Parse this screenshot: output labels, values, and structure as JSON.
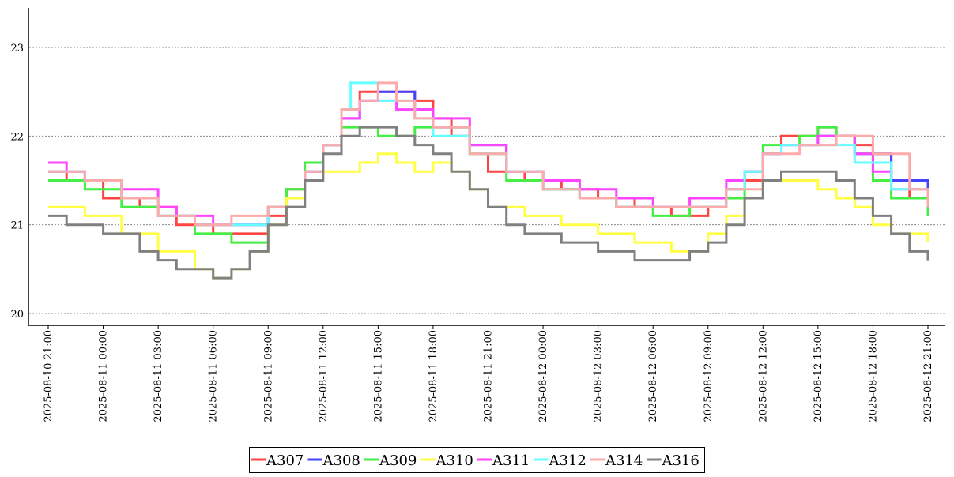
{
  "chart_data": {
    "type": "line",
    "title": "",
    "xlabel": "",
    "ylabel": "",
    "ylim": [
      19.9,
      23.45
    ],
    "xlim": [
      "2025-08-10 21:00",
      "2025-08-12 21:10"
    ],
    "grid": "horizontal dotted",
    "legend_position": "bottom-center",
    "y_ticks": [
      "20",
      "21",
      "22",
      "23"
    ],
    "x_ticks": [
      "2025-08-10 21:00",
      "2025-08-11 00:00",
      "2025-08-11 03:00",
      "2025-08-11 06:00",
      "2025-08-11 09:00",
      "2025-08-11 12:00",
      "2025-08-11 15:00",
      "2025-08-11 18:00",
      "2025-08-11 21:00",
      "2025-08-12 00:00",
      "2025-08-12 03:00",
      "2025-08-12 06:00",
      "2025-08-12 09:00",
      "2025-08-12 12:00",
      "2025-08-12 15:00",
      "2025-08-12 18:00",
      "2025-08-12 21:00"
    ],
    "series": [
      {
        "name": "A307",
        "color": "#ff4444",
        "x": [
          "2025-08-10 21:00",
          "2025-08-10 22:00",
          "2025-08-11 00:00",
          "2025-08-11 02:00",
          "2025-08-11 04:00",
          "2025-08-11 06:00",
          "2025-08-11 07:00",
          "2025-08-11 09:00",
          "2025-08-11 10:00",
          "2025-08-11 11:00",
          "2025-08-11 12:00",
          "2025-08-11 13:00",
          "2025-08-11 14:00",
          "2025-08-11 15:00",
          "2025-08-11 17:00",
          "2025-08-11 18:00",
          "2025-08-11 19:00",
          "2025-08-11 20:00",
          "2025-08-11 21:00",
          "2025-08-11 23:00",
          "2025-08-12 01:00",
          "2025-08-12 03:00",
          "2025-08-12 05:00",
          "2025-08-12 07:00",
          "2025-08-12 09:00",
          "2025-08-12 10:00",
          "2025-08-12 11:00",
          "2025-08-12 12:00",
          "2025-08-12 13:00",
          "2025-08-12 14:00",
          "2025-08-12 15:00",
          "2025-08-12 16:00",
          "2025-08-12 17:00",
          "2025-08-12 18:00",
          "2025-08-12 19:00",
          "2025-08-12 20:00",
          "2025-08-12 21:00"
        ],
        "y": [
          21.6,
          21.5,
          21.3,
          21.2,
          21.0,
          20.9,
          20.9,
          21.1,
          21.4,
          21.6,
          21.9,
          22.3,
          22.5,
          22.5,
          22.4,
          22.2,
          22.0,
          21.8,
          21.6,
          21.5,
          21.4,
          21.3,
          21.2,
          21.1,
          21.2,
          21.4,
          21.5,
          21.8,
          22.0,
          22.0,
          22.1,
          22.0,
          21.9,
          21.8,
          21.5,
          21.3,
          21.2
        ]
      },
      {
        "name": "A308",
        "color": "#4444ff",
        "x": [
          "2025-08-10 21:00",
          "2025-08-10 23:00",
          "2025-08-11 01:00",
          "2025-08-11 03:00",
          "2025-08-11 05:00",
          "2025-08-11 07:00",
          "2025-08-11 09:00",
          "2025-08-11 11:00",
          "2025-08-11 12:00",
          "2025-08-11 13:00",
          "2025-08-11 14:00",
          "2025-08-11 15:00",
          "2025-08-11 17:00",
          "2025-08-11 18:00",
          "2025-08-11 20:00",
          "2025-08-11 22:00",
          "2025-08-12 00:00",
          "2025-08-12 02:00",
          "2025-08-12 04:00",
          "2025-08-12 06:00",
          "2025-08-12 08:00",
          "2025-08-12 10:00",
          "2025-08-12 11:00",
          "2025-08-12 12:00",
          "2025-08-12 13:00",
          "2025-08-12 15:00",
          "2025-08-12 16:00",
          "2025-08-12 17:00",
          "2025-08-12 19:00",
          "2025-08-12 21:00"
        ],
        "y": [
          21.6,
          21.5,
          21.3,
          21.1,
          21.0,
          21.0,
          21.2,
          21.6,
          21.9,
          22.2,
          22.4,
          22.5,
          22.3,
          22.1,
          21.9,
          21.6,
          21.4,
          21.3,
          21.2,
          21.2,
          21.2,
          21.4,
          21.6,
          21.8,
          21.9,
          22.0,
          22.0,
          21.8,
          21.5,
          21.2
        ]
      },
      {
        "name": "A309",
        "color": "#44ee44",
        "x": [
          "2025-08-10 21:00",
          "2025-08-10 23:00",
          "2025-08-11 01:00",
          "2025-08-11 03:00",
          "2025-08-11 05:00",
          "2025-08-11 07:00",
          "2025-08-11 09:00",
          "2025-08-11 10:00",
          "2025-08-11 11:00",
          "2025-08-11 12:00",
          "2025-08-11 13:00",
          "2025-08-11 15:00",
          "2025-08-11 17:00",
          "2025-08-11 18:00",
          "2025-08-11 20:00",
          "2025-08-11 22:00",
          "2025-08-12 00:00",
          "2025-08-12 02:00",
          "2025-08-12 04:00",
          "2025-08-12 06:00",
          "2025-08-12 08:00",
          "2025-08-12 10:00",
          "2025-08-12 11:00",
          "2025-08-12 12:00",
          "2025-08-12 13:00",
          "2025-08-12 14:00",
          "2025-08-12 15:00",
          "2025-08-12 16:00",
          "2025-08-12 17:00",
          "2025-08-12 18:00",
          "2025-08-12 19:00",
          "2025-08-12 21:00"
        ],
        "y": [
          21.5,
          21.4,
          21.2,
          21.1,
          20.9,
          20.8,
          21.2,
          21.4,
          21.7,
          21.9,
          22.1,
          22.0,
          22.1,
          22.1,
          21.8,
          21.5,
          21.4,
          21.3,
          21.2,
          21.1,
          21.2,
          21.3,
          21.6,
          21.9,
          21.9,
          22.0,
          22.1,
          22.0,
          21.8,
          21.5,
          21.3,
          21.1
        ]
      },
      {
        "name": "A310",
        "color": "#ffff44",
        "x": [
          "2025-08-10 21:00",
          "2025-08-10 23:00",
          "2025-08-11 01:00",
          "2025-08-11 03:00",
          "2025-08-11 05:00",
          "2025-08-11 06:00",
          "2025-08-11 07:00",
          "2025-08-11 08:00",
          "2025-08-11 09:00",
          "2025-08-11 10:00",
          "2025-08-11 11:00",
          "2025-08-11 12:00",
          "2025-08-11 13:00",
          "2025-08-11 14:00",
          "2025-08-11 15:00",
          "2025-08-11 16:00",
          "2025-08-11 17:00",
          "2025-08-11 18:00",
          "2025-08-11 19:00",
          "2025-08-11 20:00",
          "2025-08-11 21:00",
          "2025-08-11 23:00",
          "2025-08-12 01:00",
          "2025-08-12 03:00",
          "2025-08-12 05:00",
          "2025-08-12 07:00",
          "2025-08-12 08:00",
          "2025-08-12 09:00",
          "2025-08-12 10:00",
          "2025-08-12 11:00",
          "2025-08-12 12:00",
          "2025-08-12 13:00",
          "2025-08-12 14:00",
          "2025-08-12 15:00",
          "2025-08-12 16:00",
          "2025-08-12 17:00",
          "2025-08-12 18:00",
          "2025-08-12 19:00",
          "2025-08-12 20:00",
          "2025-08-12 21:00"
        ],
        "y": [
          21.2,
          21.1,
          20.9,
          20.7,
          20.5,
          20.4,
          20.5,
          20.7,
          21.0,
          21.3,
          21.5,
          21.6,
          21.6,
          21.7,
          21.8,
          21.7,
          21.6,
          21.7,
          21.6,
          21.4,
          21.2,
          21.1,
          21.0,
          20.9,
          20.8,
          20.7,
          20.7,
          20.9,
          21.1,
          21.3,
          21.5,
          21.5,
          21.5,
          21.4,
          21.3,
          21.2,
          21.0,
          20.9,
          20.9,
          20.8
        ]
      },
      {
        "name": "A311",
        "color": "#ff44ff",
        "x": [
          "2025-08-10 21:00",
          "2025-08-10 22:00",
          "2025-08-10 23:00",
          "2025-08-11 01:00",
          "2025-08-11 03:00",
          "2025-08-11 04:00",
          "2025-08-11 06:00",
          "2025-08-11 07:00",
          "2025-08-11 09:00",
          "2025-08-11 11:00",
          "2025-08-11 12:00",
          "2025-08-11 13:00",
          "2025-08-11 14:00",
          "2025-08-11 16:00",
          "2025-08-11 18:00",
          "2025-08-11 20:00",
          "2025-08-11 22:00",
          "2025-08-12 00:00",
          "2025-08-12 02:00",
          "2025-08-12 04:00",
          "2025-08-12 06:00",
          "2025-08-12 08:00",
          "2025-08-12 10:00",
          "2025-08-12 11:00",
          "2025-08-12 12:00",
          "2025-08-12 13:00",
          "2025-08-12 15:00",
          "2025-08-12 16:00",
          "2025-08-12 17:00",
          "2025-08-12 18:00",
          "2025-08-12 19:00",
          "2025-08-12 21:00"
        ],
        "y": [
          21.7,
          21.6,
          21.5,
          21.4,
          21.2,
          21.1,
          21.0,
          21.0,
          21.2,
          21.6,
          21.9,
          22.2,
          22.4,
          22.3,
          22.2,
          21.9,
          21.6,
          21.5,
          21.4,
          21.3,
          21.2,
          21.3,
          21.5,
          21.6,
          21.8,
          21.9,
          22.0,
          22.0,
          21.8,
          21.6,
          21.4,
          21.2
        ]
      },
      {
        "name": "A312",
        "color": "#66ffff",
        "x": [
          "2025-08-10 21:00",
          "2025-08-10 23:00",
          "2025-08-11 01:00",
          "2025-08-11 03:00",
          "2025-08-11 05:00",
          "2025-08-11 07:00",
          "2025-08-11 09:00",
          "2025-08-11 11:00",
          "2025-08-11 12:00",
          "2025-08-11 13:00",
          "2025-08-11 13:30",
          "2025-08-11 15:00",
          "2025-08-11 17:00",
          "2025-08-11 18:00",
          "2025-08-11 20:00",
          "2025-08-11 22:00",
          "2025-08-12 00:00",
          "2025-08-12 02:00",
          "2025-08-12 04:00",
          "2025-08-12 06:00",
          "2025-08-12 08:00",
          "2025-08-12 10:00",
          "2025-08-12 11:00",
          "2025-08-12 12:00",
          "2025-08-12 13:00",
          "2025-08-12 14:00",
          "2025-08-12 15:00",
          "2025-08-12 16:00",
          "2025-08-12 17:00",
          "2025-08-12 19:00",
          "2025-08-12 21:00"
        ],
        "y": [
          21.6,
          21.5,
          21.3,
          21.1,
          21.0,
          21.0,
          21.2,
          21.6,
          21.9,
          22.3,
          22.6,
          22.4,
          22.2,
          22.0,
          21.8,
          21.6,
          21.4,
          21.3,
          21.2,
          21.2,
          21.2,
          21.4,
          21.6,
          21.8,
          21.9,
          21.9,
          21.9,
          21.9,
          21.7,
          21.4,
          21.3
        ]
      },
      {
        "name": "A314",
        "color": "#ffaaaa",
        "x": [
          "2025-08-10 21:00",
          "2025-08-10 23:00",
          "2025-08-11 01:00",
          "2025-08-11 03:00",
          "2025-08-11 05:00",
          "2025-08-11 07:00",
          "2025-08-11 09:00",
          "2025-08-11 11:00",
          "2025-08-11 12:00",
          "2025-08-11 13:00",
          "2025-08-11 14:00",
          "2025-08-11 15:00",
          "2025-08-11 16:00",
          "2025-08-11 17:00",
          "2025-08-11 18:00",
          "2025-08-11 20:00",
          "2025-08-11 22:00",
          "2025-08-12 00:00",
          "2025-08-12 02:00",
          "2025-08-12 04:00",
          "2025-08-12 06:00",
          "2025-08-12 08:00",
          "2025-08-12 10:00",
          "2025-08-12 12:00",
          "2025-08-12 14:00",
          "2025-08-12 16:00",
          "2025-08-12 18:00",
          "2025-08-12 20:00",
          "2025-08-12 21:00"
        ],
        "y": [
          21.6,
          21.5,
          21.3,
          21.1,
          21.0,
          21.1,
          21.2,
          21.6,
          21.9,
          22.3,
          22.4,
          22.6,
          22.4,
          22.2,
          22.1,
          21.8,
          21.6,
          21.4,
          21.3,
          21.2,
          21.2,
          21.2,
          21.4,
          21.8,
          21.9,
          22.0,
          21.8,
          21.4,
          21.2
        ]
      },
      {
        "name": "A316",
        "color": "#808080",
        "x": [
          "2025-08-10 21:00",
          "2025-08-10 22:00",
          "2025-08-11 00:00",
          "2025-08-11 02:00",
          "2025-08-11 03:00",
          "2025-08-11 04:00",
          "2025-08-11 05:00",
          "2025-08-11 06:00",
          "2025-08-11 07:00",
          "2025-08-11 08:00",
          "2025-08-11 09:00",
          "2025-08-11 10:00",
          "2025-08-11 11:00",
          "2025-08-11 12:00",
          "2025-08-11 13:00",
          "2025-08-11 14:00",
          "2025-08-11 15:00",
          "2025-08-11 16:00",
          "2025-08-11 17:00",
          "2025-08-11 18:00",
          "2025-08-11 19:00",
          "2025-08-11 20:00",
          "2025-08-11 21:00",
          "2025-08-11 22:00",
          "2025-08-11 23:00",
          "2025-08-12 01:00",
          "2025-08-12 03:00",
          "2025-08-12 05:00",
          "2025-08-12 06:00",
          "2025-08-12 07:00",
          "2025-08-12 08:00",
          "2025-08-12 09:00",
          "2025-08-12 10:00",
          "2025-08-12 11:00",
          "2025-08-12 12:00",
          "2025-08-12 13:00",
          "2025-08-12 14:00",
          "2025-08-12 15:00",
          "2025-08-12 16:00",
          "2025-08-12 17:00",
          "2025-08-12 18:00",
          "2025-08-12 19:00",
          "2025-08-12 20:00",
          "2025-08-12 21:00"
        ],
        "y": [
          21.1,
          21.0,
          20.9,
          20.7,
          20.6,
          20.5,
          20.5,
          20.4,
          20.5,
          20.7,
          21.0,
          21.2,
          21.5,
          21.8,
          22.0,
          22.1,
          22.1,
          22.0,
          21.9,
          21.8,
          21.6,
          21.4,
          21.2,
          21.0,
          20.9,
          20.8,
          20.7,
          20.6,
          20.6,
          20.6,
          20.7,
          20.8,
          21.0,
          21.3,
          21.5,
          21.6,
          21.6,
          21.6,
          21.5,
          21.3,
          21.1,
          20.9,
          20.7,
          20.6
        ]
      }
    ]
  }
}
